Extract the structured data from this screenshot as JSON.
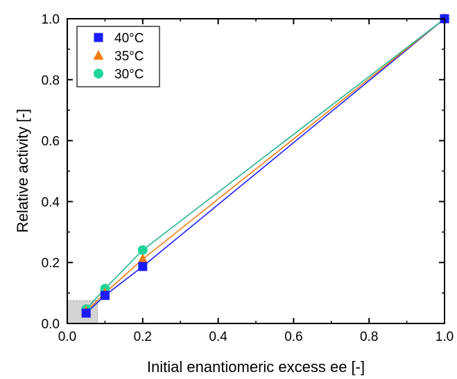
{
  "chart_data": {
    "type": "line",
    "title": "",
    "xlabel": "Initial enantiomeric excess ee [-]",
    "ylabel": "Relative activity [-]",
    "xlim": [
      0.0,
      1.0
    ],
    "ylim": [
      0.0,
      1.0
    ],
    "xticks": [
      "0.0",
      "0.2",
      "0.4",
      "0.6",
      "0.8",
      "1.0"
    ],
    "yticks": [
      "0.0",
      "0.2",
      "0.4",
      "0.6",
      "0.8",
      "1.0"
    ],
    "grid": false,
    "legend_position": "top-left",
    "highlight_region": {
      "x": [
        0.0,
        0.08
      ],
      "y": [
        0.0,
        0.075
      ]
    },
    "series": [
      {
        "name": "40°C",
        "marker": "square",
        "marker_color": "#1a1aff",
        "line_color": "#1a1aff",
        "x": [
          0.05,
          0.1,
          0.2,
          1.0
        ],
        "y": [
          0.034,
          0.092,
          0.187,
          1.0
        ]
      },
      {
        "name": "35°C",
        "marker": "triangle",
        "marker_color": "#f07c0f",
        "line_color": "#f07c0f",
        "x": [
          0.05,
          0.1,
          0.2,
          1.0
        ],
        "y": [
          0.04,
          0.1,
          0.211,
          1.0
        ]
      },
      {
        "name": "30°C",
        "marker": "circle",
        "marker_color": "#1fd49a",
        "line_color": "#22b591",
        "x": [
          0.05,
          0.1,
          0.2,
          1.0
        ],
        "y": [
          0.047,
          0.114,
          0.241,
          1.0
        ]
      }
    ]
  }
}
